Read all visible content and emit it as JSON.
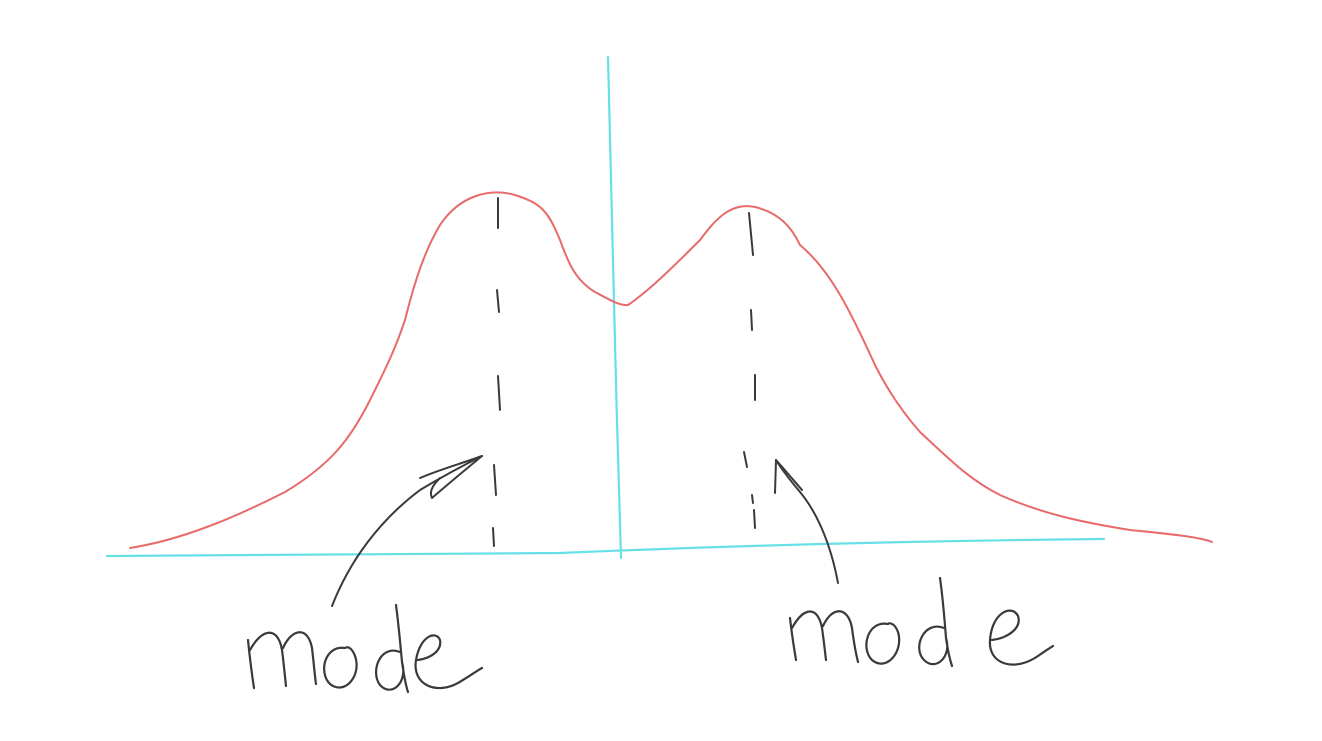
{
  "labels": {
    "left_mode": "mode",
    "right_mode": "mode"
  },
  "colors": {
    "axis": "#66e0e6",
    "curve": "#e86b6b",
    "ink": "#3a3a3a",
    "background": "#ffffff"
  }
}
